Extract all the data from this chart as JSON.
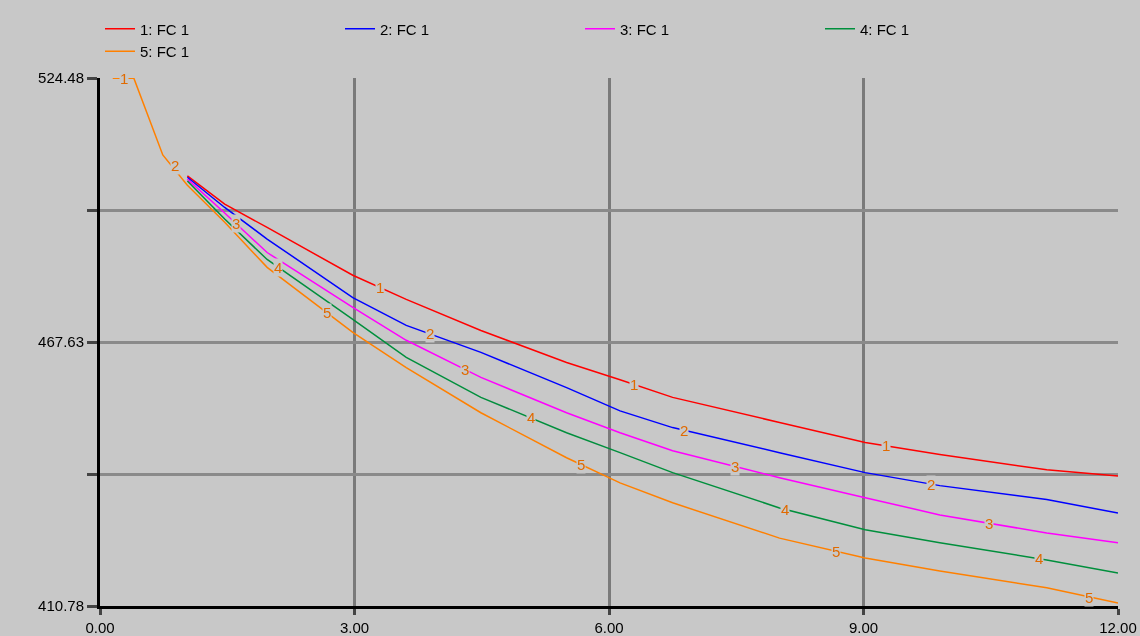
{
  "chart_data": {
    "type": "line",
    "x": [
      0.15,
      0.4,
      0.74,
      1.03,
      1.47,
      1.97,
      2.98,
      3.61,
      4.49,
      5.5,
      6.13,
      6.75,
      8.01,
      9.02,
      9.9,
      11.16,
      12
    ],
    "series": [
      {
        "name": "1: FC 1",
        "color": "#ff0000",
        "values": [
          null,
          null,
          null,
          503.4,
          497.3,
          492.3,
          482.0,
          476.8,
          470.1,
          463.2,
          459.5,
          455.7,
          450.3,
          446.0,
          443.4,
          440.1,
          438.8
        ]
      },
      {
        "name": "2: FC 1",
        "color": "#0000ff",
        "values": [
          null,
          null,
          null,
          503.1,
          496.6,
          489.8,
          477.2,
          471.2,
          465.4,
          457.8,
          452.8,
          449.2,
          443.8,
          439.5,
          436.7,
          433.7,
          430.8
        ]
      },
      {
        "name": "3: FC 1",
        "color": "#ff00ff",
        "values": [
          null,
          null,
          null,
          502.7,
          495.4,
          486.9,
          475.1,
          468.0,
          460.0,
          452.4,
          448.1,
          444.2,
          438.4,
          434.1,
          430.4,
          426.5,
          424.4
        ]
      },
      {
        "name": "4: FC 1",
        "color": "#008f3c",
        "values": [
          null,
          null,
          null,
          502.3,
          494.1,
          485.4,
          472.5,
          464.3,
          455.7,
          448.1,
          443.8,
          439.5,
          431.9,
          427.2,
          424.4,
          420.7,
          417.9
        ]
      },
      {
        "name": "5: FC 1",
        "color": "#ff8000",
        "values": [
          524.4,
          524.4,
          507.9,
          501.4,
          493.4,
          483.7,
          469.7,
          462.1,
          452.4,
          442.7,
          437.3,
          433.0,
          425.4,
          421.1,
          418.3,
          414.7,
          411.4
        ]
      }
    ],
    "xlim": [
      0,
      12
    ],
    "xticks": [
      {
        "value": 0,
        "label": "0.00"
      },
      {
        "value": 3,
        "label": "3.00"
      },
      {
        "value": 6,
        "label": "6.00"
      },
      {
        "value": 9,
        "label": "9.00"
      },
      {
        "value": 12,
        "label": "12.00"
      }
    ],
    "ylim": [
      410.78,
      524.48
    ],
    "yticks": [
      410.78,
      {
        "value": 439.205,
        "label": null
      },
      467.63,
      {
        "value": 496.055,
        "label": null
      },
      524.48
    ],
    "grid": true,
    "legend": "top",
    "marker": "none",
    "line_style": "solid",
    "annotations": [
      {
        "text": "1",
        "x": 0.28,
        "y": 524.4
      },
      {
        "text": "1",
        "x": 3.3,
        "y": 479.4
      },
      {
        "text": "1",
        "x": 6.29,
        "y": 458.5
      },
      {
        "text": "1",
        "x": 9.27,
        "y": 445.3
      },
      {
        "text": "2",
        "x": 0.88,
        "y": 505.6
      },
      {
        "text": "2",
        "x": 3.89,
        "y": 469.4
      },
      {
        "text": "2",
        "x": 6.88,
        "y": 448.6
      },
      {
        "text": "2",
        "x": 9.8,
        "y": 437.0
      },
      {
        "text": "3",
        "x": 1.6,
        "y": 493.2
      },
      {
        "text": "3",
        "x": 4.3,
        "y": 461.7
      },
      {
        "text": "3",
        "x": 7.48,
        "y": 440.8
      },
      {
        "text": "3",
        "x": 10.48,
        "y": 428.6
      },
      {
        "text": "4",
        "x": 2.1,
        "y": 483.7
      },
      {
        "text": "4",
        "x": 5.08,
        "y": 451.3
      },
      {
        "text": "4",
        "x": 8.08,
        "y": 431.6
      },
      {
        "text": "4",
        "x": 11.07,
        "y": 421.0
      },
      {
        "text": "5",
        "x": 2.68,
        "y": 473.9
      },
      {
        "text": "5",
        "x": 5.67,
        "y": 441.2
      },
      {
        "text": "5",
        "x": 8.68,
        "y": 422.5
      },
      {
        "text": "5",
        "x": 11.66,
        "y": 412.7
      }
    ]
  }
}
